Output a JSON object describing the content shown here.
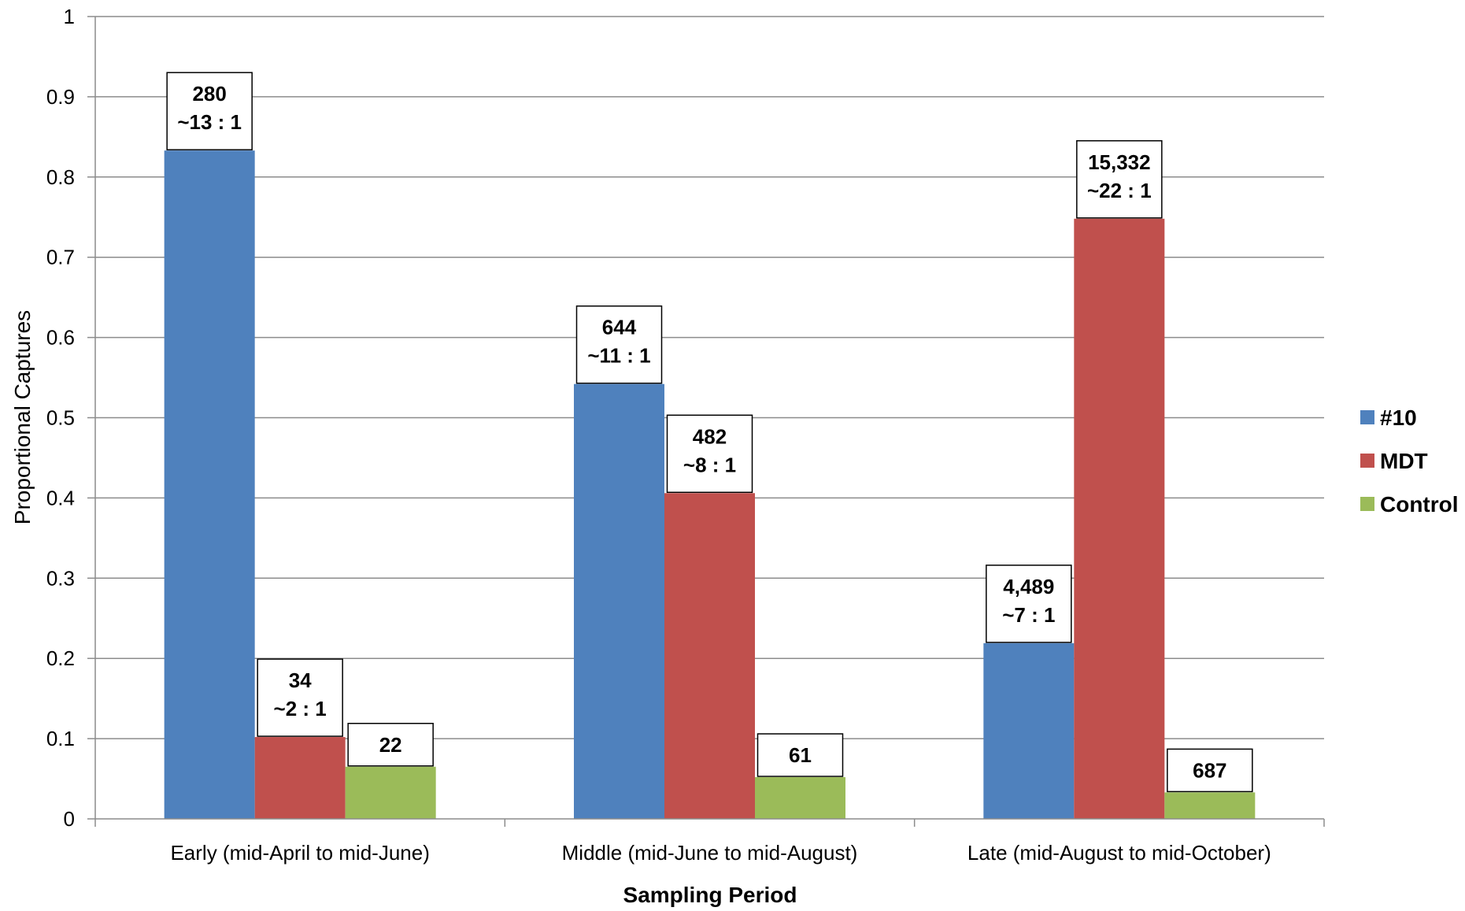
{
  "chart_data": {
    "type": "bar",
    "title": "",
    "xlabel": "Sampling Period",
    "ylabel": "Proportional Captures",
    "ylim": [
      0,
      1
    ],
    "yticks": [
      "0",
      "0.1",
      "0.2",
      "0.3",
      "0.4",
      "0.5",
      "0.6",
      "0.7",
      "0.8",
      "0.9",
      "1"
    ],
    "grid": true,
    "legend_position": "right",
    "categories": [
      "Early (mid-April to mid-June)",
      "Middle (mid-June to mid-August)",
      "Late (mid-August to mid-October)"
    ],
    "series": [
      {
        "name": "#10",
        "color": "#4F81BD",
        "values": [
          0.833,
          0.542,
          0.219
        ],
        "labels": [
          [
            "280",
            "~13 : 1"
          ],
          [
            "644",
            "~11 : 1"
          ],
          [
            "4,489",
            "~7 : 1"
          ]
        ]
      },
      {
        "name": "MDT",
        "color": "#C0504D",
        "values": [
          0.102,
          0.406,
          0.748
        ],
        "labels": [
          [
            "34",
            "~2 : 1"
          ],
          [
            "482",
            "~8 : 1"
          ],
          [
            "15,332",
            "~22 : 1"
          ]
        ]
      },
      {
        "name": "Control",
        "color": "#9BBB59",
        "values": [
          0.065,
          0.052,
          0.033
        ],
        "labels": [
          [
            "22"
          ],
          [
            "61"
          ],
          [
            "687"
          ]
        ]
      }
    ]
  }
}
